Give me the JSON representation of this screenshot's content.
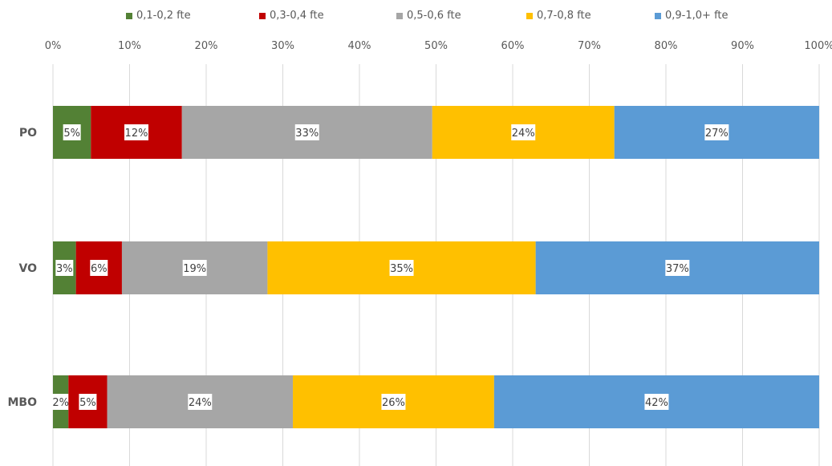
{
  "chart_data": {
    "type": "bar",
    "orientation": "horizontal",
    "stacked": true,
    "categories": [
      "PO",
      "VO",
      "MBO"
    ],
    "series": [
      {
        "name": "0,1-0,2 fte",
        "color": "#538135",
        "values": [
          5,
          3,
          2
        ]
      },
      {
        "name": "0,3-0,4 fte",
        "color": "#c00000",
        "values": [
          12,
          6,
          5
        ]
      },
      {
        "name": "0,5-0,6 fte",
        "color": "#a6a6a6",
        "values": [
          33,
          19,
          24
        ]
      },
      {
        "name": "0,7-0,8 fte",
        "color": "#ffc000",
        "values": [
          24,
          35,
          26
        ]
      },
      {
        "name": "0,9-1,0+ fte",
        "color": "#5b9bd5",
        "values": [
          27,
          37,
          42
        ]
      }
    ],
    "data_labels": [
      [
        "5%",
        "12%",
        "33%",
        "24%",
        "27%"
      ],
      [
        "3%",
        "6%",
        "19%",
        "35%",
        "37%"
      ],
      [
        "2%",
        "5%",
        "24%",
        "26%",
        "42%"
      ]
    ],
    "xlim": [
      0,
      100
    ],
    "x_ticks": [
      "0%",
      "10%",
      "20%",
      "30%",
      "40%",
      "50%",
      "60%",
      "70%",
      "80%",
      "90%",
      "100%"
    ],
    "x_axis_position": "top",
    "grid": true,
    "legend_position": "top",
    "title": "",
    "xlabel": "",
    "ylabel": ""
  }
}
